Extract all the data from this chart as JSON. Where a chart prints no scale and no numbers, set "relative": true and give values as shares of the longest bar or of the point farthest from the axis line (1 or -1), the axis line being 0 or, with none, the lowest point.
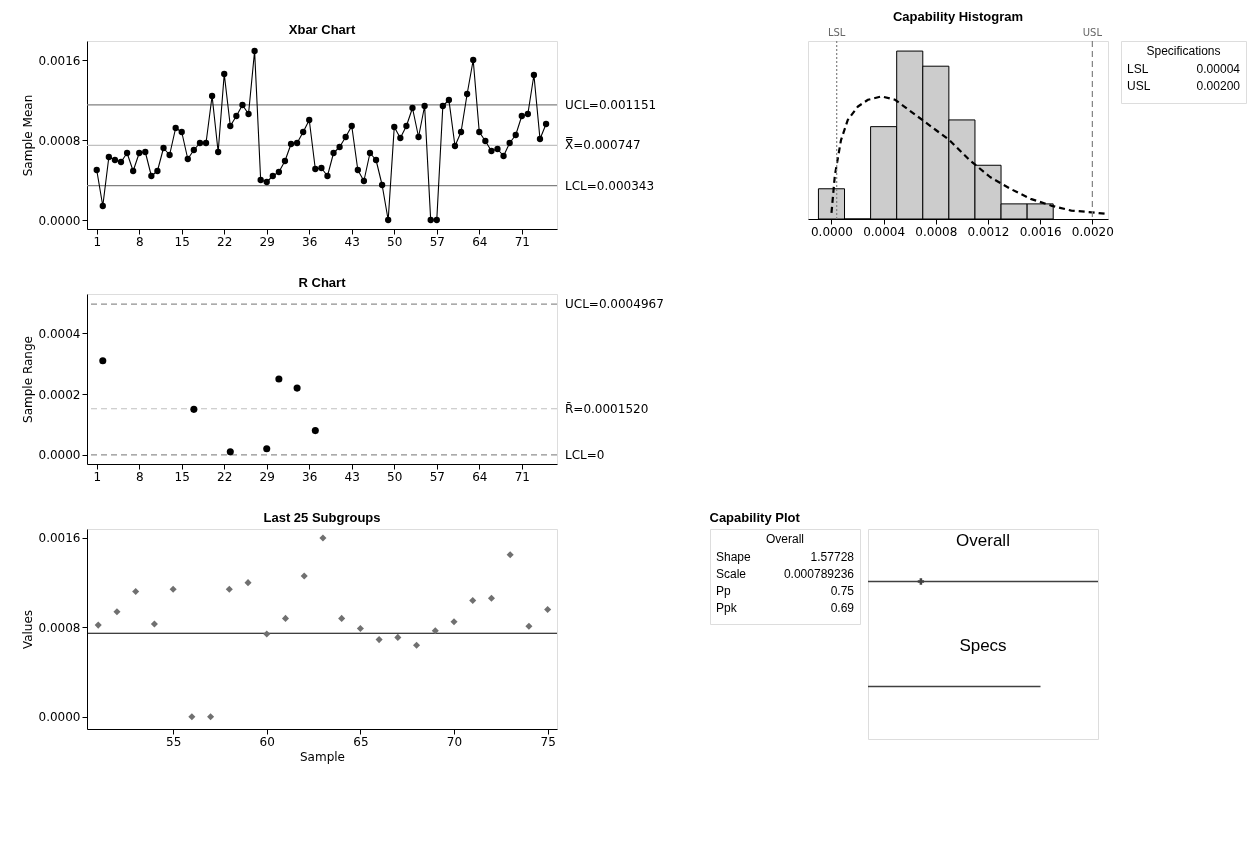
{
  "chart_data": [
    {
      "type": "line",
      "title": "Xbar Chart",
      "ylabel": "Sample Mean",
      "marker": "circle",
      "line_style": "solid",
      "xlim": [
        -0.6,
        76.8
      ],
      "xticks": [
        1,
        8,
        15,
        22,
        29,
        36,
        43,
        50,
        57,
        64,
        71
      ],
      "ylim": [
        -9e-05,
        0.00179
      ],
      "yticks": [
        {
          "value": 0,
          "label": "0.0000"
        },
        {
          "value": 0.0008,
          "label": "0.0008"
        },
        {
          "value": 0.0016,
          "label": "0.0016"
        }
      ],
      "x": [
        1,
        2,
        3,
        4,
        5,
        6,
        7,
        8,
        9,
        10,
        11,
        12,
        13,
        14,
        15,
        16,
        17,
        18,
        19,
        20,
        21,
        22,
        23,
        24,
        25,
        26,
        27,
        28,
        29,
        30,
        31,
        32,
        33,
        34,
        35,
        36,
        37,
        38,
        39,
        40,
        41,
        42,
        43,
        44,
        45,
        46,
        47,
        48,
        49,
        50,
        51,
        52,
        53,
        54,
        55,
        56,
        57,
        58,
        59,
        60,
        61,
        62,
        63,
        64,
        65,
        66,
        67,
        68,
        69,
        70,
        71,
        72,
        73,
        74,
        75
      ],
      "series": [
        {
          "color": "#000000",
          "values": [
            0.0005,
            0.00014,
            0.00063,
            0.0006,
            0.00058,
            0.00067,
            0.00049,
            0.00067,
            0.00068,
            0.00044,
            0.00049,
            0.00072,
            0.00065,
            0.00092,
            0.00088,
            0.00061,
            0.0007,
            0.00077,
            0.00077,
            0.00124,
            0.00068,
            0.00146,
            0.00094,
            0.00104,
            0.00115,
            0.00106,
            0.00169,
            0.0004,
            0.00038,
            0.00044,
            0.00048,
            0.00059,
            0.00076,
            0.00077,
            0.00088,
            0.001,
            0.00051,
            0.00052,
            0.00044,
            0.00067,
            0.00073,
            0.00083,
            0.00094,
            0.0005,
            0.00039,
            0.00067,
            0.0006,
            0.00035,
            0.0,
            0.00093,
            0.00082,
            0.00094,
            0.00112,
            0.00083,
            0.00114,
            0.0,
            0.0,
            0.00114,
            0.0012,
            0.00074,
            0.00088,
            0.00126,
            0.0016,
            0.00088,
            0.00079,
            0.00069,
            0.00071,
            0.00064,
            0.00077,
            0.00085,
            0.00104,
            0.00106,
            0.00145,
            0.00081,
            0.00096
          ]
        }
      ],
      "ref_lines": [
        {
          "axis": "y",
          "value": 0.001151,
          "label": "UCL=0.001151",
          "color": "#808080",
          "line_style": "solid"
        },
        {
          "axis": "y",
          "value": 0.000747,
          "label": "X̿=0.000747",
          "color": "#c0c0c0",
          "line_style": "solid"
        },
        {
          "axis": "y",
          "value": 0.000343,
          "label": "LCL=0.000343",
          "color": "#808080",
          "line_style": "solid"
        }
      ]
    },
    {
      "type": "histogram",
      "title": "Capability Histogram",
      "relative": true,
      "tick_labels": "x",
      "xlim": [
        -0.00018,
        0.00212
      ],
      "xticks": [
        {
          "value": 0,
          "label": "0.0000"
        },
        {
          "value": 0.0004,
          "label": "0.0004"
        },
        {
          "value": 0.0008,
          "label": "0.0008"
        },
        {
          "value": 0.0012,
          "label": "0.0012"
        },
        {
          "value": 0.0016,
          "label": "0.0016"
        },
        {
          "value": 0.002,
          "label": "0.0020"
        }
      ],
      "bins": [
        -0.0001,
        0.0001,
        0.0003,
        0.0005,
        0.0007,
        0.0009,
        0.0011,
        0.0013,
        0.0015,
        0.0017
      ],
      "values": [
        0.18,
        0,
        0.55,
        1,
        0.91,
        0.59,
        0.32,
        0.09,
        0.09
      ],
      "color": "#cccccc",
      "series": [
        {
          "type": "line",
          "line_style": "dashed",
          "color": "#000000",
          "x": [
            0,
            2.6e-05,
            7.3e-05,
            0.000125,
            0.000203,
            0.00028,
            0.000384,
            0.000488,
            0.000592,
            0.000696,
            0.0008,
            0.000904,
            0.00106,
            0.001216,
            0.001371,
            0.001527,
            0.001683,
            0.001839,
            0.001995,
            0.002112
          ],
          "values": [
            0.037,
            0.26,
            0.47,
            0.59,
            0.67,
            0.71,
            0.73,
            0.71,
            0.65,
            0.59,
            0.53,
            0.47,
            0.35,
            0.25,
            0.18,
            0.12,
            0.08,
            0.05,
            0.04,
            0.03
          ]
        }
      ],
      "ref_lines": [
        {
          "axis": "x",
          "value": 4e-05,
          "label": "LSL",
          "color": "#808080",
          "line_style": "dotted"
        },
        {
          "axis": "x",
          "value": 0.002,
          "label": "USL",
          "color": "#808080",
          "line_style": "dashed"
        }
      ],
      "annotations": [
        "Specifications",
        "LSL",
        "0.00004",
        "USL",
        "0.00200"
      ]
    },
    {
      "type": "scatter",
      "title": "R Chart",
      "ylabel": "Sample Range",
      "marker": "circle",
      "xlim": [
        -0.6,
        76.8
      ],
      "xticks": [
        1,
        8,
        15,
        22,
        29,
        36,
        43,
        50,
        57,
        64,
        71
      ],
      "ylim": [
        -3e-05,
        0.00053
      ],
      "yticks": [
        {
          "value": 0,
          "label": "0.0000"
        },
        {
          "value": 0.0002,
          "label": "0.0002"
        },
        {
          "value": 0.0004,
          "label": "0.0004"
        }
      ],
      "x": [
        2,
        17,
        23,
        29,
        31,
        34,
        37
      ],
      "series": [
        {
          "color": "#000000",
          "values": [
            0.00031,
            0.00015,
            1e-05,
            2e-05,
            0.00025,
            0.00022,
            8e-05
          ]
        }
      ],
      "ref_lines": [
        {
          "axis": "y",
          "value": 0.0004967,
          "label": "UCL=0.0004967",
          "color": "#909090",
          "line_style": "dashed"
        },
        {
          "axis": "y",
          "value": 0.000152,
          "label": "R̄=0.0001520",
          "color": "#c0c0c0",
          "line_style": "dashed"
        },
        {
          "axis": "y",
          "value": 0,
          "label": "LCL=0",
          "color": "#909090",
          "line_style": "dashed"
        }
      ]
    },
    {
      "type": "scatter",
      "title": "Last 25 Subgroups",
      "xlabel": "Sample",
      "ylabel": "Values",
      "marker": "diamond",
      "xlim": [
        50.4,
        75.5
      ],
      "xticks": [
        55,
        60,
        65,
        70,
        75
      ],
      "ylim": [
        -0.00011,
        0.00168
      ],
      "yticks": [
        {
          "value": 0,
          "label": "0.0000"
        },
        {
          "value": 0.0008,
          "label": "0.0008"
        },
        {
          "value": 0.0016,
          "label": "0.0016"
        }
      ],
      "x": [
        51,
        52,
        53,
        54,
        55,
        56,
        57,
        58,
        59,
        60,
        61,
        62,
        63,
        64,
        65,
        66,
        67,
        68,
        69,
        70,
        71,
        72,
        73,
        74,
        75
      ],
      "series": [
        {
          "color": "#707070",
          "values": [
            0.00082,
            0.00094,
            0.00112,
            0.00083,
            0.00114,
            0.0,
            0.0,
            0.00114,
            0.0012,
            0.00074,
            0.00088,
            0.00126,
            0.0016,
            0.00088,
            0.00079,
            0.00069,
            0.00071,
            0.00064,
            0.00077,
            0.00085,
            0.00104,
            0.00106,
            0.00145,
            0.00081,
            0.00096
          ]
        }
      ],
      "ref_lines": [
        {
          "axis": "y",
          "value": 0.000747,
          "color": "#000000",
          "line_style": "solid"
        }
      ]
    },
    {
      "type": "other",
      "title": "Capability Plot",
      "annotations": [
        "Overall",
        "Shape",
        "1.57728",
        "Scale",
        "0.000789236",
        "Pp",
        "0.75",
        "Ppk",
        "0.69"
      ]
    },
    {
      "type": "bar",
      "orientation": "horizontal",
      "relative": true,
      "categories": [
        "Overall",
        "Specs"
      ],
      "marker": "cross",
      "series": [
        {
          "color": "#404040",
          "values": [
            1,
            0.75
          ]
        },
        {
          "type": "scatter",
          "color": "#404040",
          "values": [
            0.23,
            null
          ]
        }
      ]
    }
  ]
}
